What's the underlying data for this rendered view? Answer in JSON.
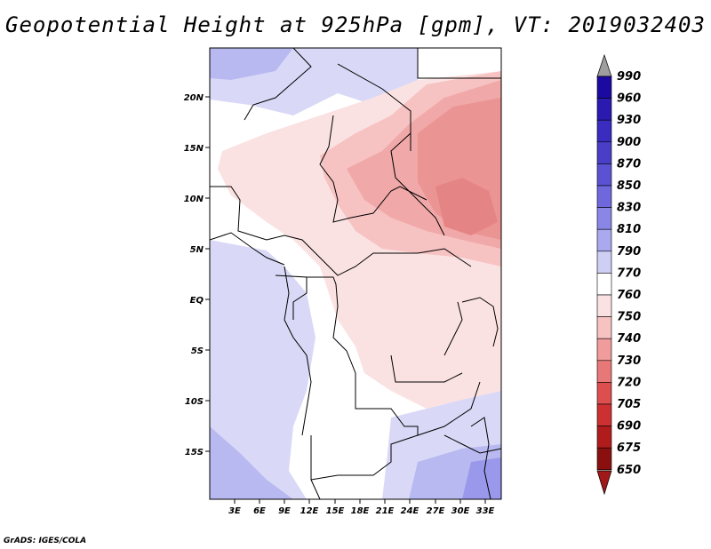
{
  "title": "Geopotential Height at 925hPa [gpm], VT: 2019032403",
  "credit": "GrADS: IGES/COLA",
  "map": {
    "lat_labels": [
      "20N",
      "15N",
      "10N",
      "5N",
      "EQ",
      "5S",
      "10S",
      "15S"
    ],
    "lon_labels": [
      "3E",
      "6E",
      "9E",
      "12E",
      "15E",
      "18E",
      "21E",
      "24E",
      "27E",
      "30E",
      "33E"
    ]
  },
  "colorbar": {
    "labels": [
      "990",
      "960",
      "930",
      "900",
      "870",
      "850",
      "830",
      "810",
      "790",
      "770",
      "760",
      "750",
      "740",
      "730",
      "720",
      "705",
      "690",
      "675",
      "650"
    ],
    "colors": [
      "#9e9e9e",
      "#1c0aa0",
      "#2a1ab0",
      "#3a2cbe",
      "#4a3ec8",
      "#5a52d2",
      "#6e68dc",
      "#8a86e6",
      "#aaa8ee",
      "#cfcff6",
      "#ffffff",
      "#fbe2e2",
      "#f7c2c2",
      "#f09c9c",
      "#e87878",
      "#dd4e4e",
      "#cc3030",
      "#b01c1c",
      "#8a1010"
    ],
    "top_color": "#9e9e9e",
    "bottom_color": "#a01818"
  }
}
